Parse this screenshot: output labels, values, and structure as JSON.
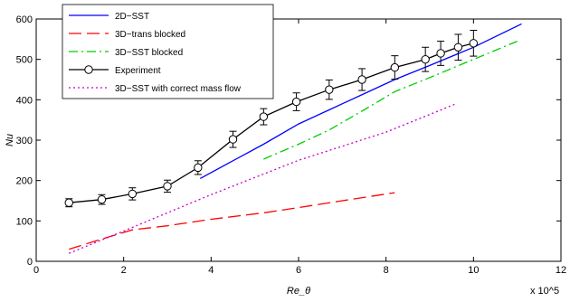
{
  "chart_data": {
    "type": "line",
    "xlabel": "Re_θ",
    "ylabel": "Nu",
    "x_multiplier": "x 10^5",
    "xlim": [
      0,
      1200000
    ],
    "ylim": [
      0,
      600
    ],
    "x_ticks": [
      0,
      200000,
      400000,
      600000,
      800000,
      1000000,
      1200000
    ],
    "x_tick_labels": [
      "0",
      "2",
      "4",
      "6",
      "8",
      "10",
      "12"
    ],
    "y_ticks": [
      0,
      100,
      200,
      300,
      400,
      500,
      600
    ],
    "y_tick_labels": [
      "0",
      "100",
      "200",
      "300",
      "400",
      "500",
      "600"
    ],
    "grid": false,
    "legend_position": "top-left",
    "series": [
      {
        "name": "2D−SST",
        "color": "#0000ff",
        "style": "solid",
        "x": [
          375000,
          520000,
          600000,
          670000,
          750000,
          820000,
          900000,
          1000000,
          1110000
        ],
        "y": [
          205,
          290,
          340,
          375,
          415,
          450,
          485,
          530,
          588
        ]
      },
      {
        "name": "3D−trans blocked",
        "color": "#ff0000",
        "style": "dashed",
        "x": [
          75000,
          150000,
          220000,
          300000,
          400000,
          520000,
          600000,
          700000,
          820000
        ],
        "y": [
          30,
          55,
          78,
          88,
          104,
          120,
          133,
          150,
          170
        ]
      },
      {
        "name": "3D−SST blocked",
        "color": "#00cc00",
        "style": "dashdot",
        "x": [
          520000,
          600000,
          670000,
          750000,
          820000,
          900000,
          1000000,
          1100000
        ],
        "y": [
          253,
          290,
          325,
          375,
          420,
          455,
          500,
          545
        ]
      },
      {
        "name": "Experiment",
        "color": "#000000",
        "style": "solid-markers",
        "x": [
          75000,
          150000,
          220000,
          300000,
          370000,
          450000,
          520000,
          595000,
          670000,
          745000,
          820000,
          890000,
          925000,
          965000,
          1000000
        ],
        "y": [
          145,
          153,
          167,
          186,
          232,
          302,
          358,
          395,
          425,
          450,
          480,
          500,
          515,
          530,
          540
        ],
        "error": [
          10,
          12,
          15,
          15,
          17,
          20,
          20,
          22,
          24,
          27,
          29,
          30,
          30,
          32,
          32
        ]
      },
      {
        "name": "3D−SST with correct mass flow",
        "color": "#cc00cc",
        "style": "dotted",
        "x": [
          75000,
          200000,
          400000,
          600000,
          800000,
          960000
        ],
        "y": [
          20,
          75,
          165,
          250,
          320,
          390
        ]
      }
    ]
  }
}
